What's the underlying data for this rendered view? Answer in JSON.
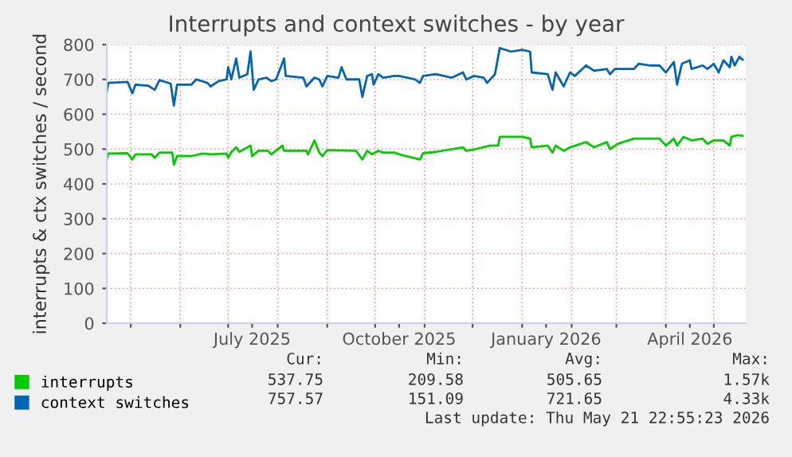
{
  "chart_data": {
    "type": "line",
    "title": "Interrupts and context switches - by year",
    "ylabel": "interrupts & ctx switches / second",
    "xlim": [
      "2025-04-16",
      "2026-05-21"
    ],
    "xticks": [
      {
        "value": "2025-05-01",
        "label": null
      },
      {
        "value": "2025-06-01",
        "label": null
      },
      {
        "value": "2025-07-01",
        "label": null
      },
      {
        "value": "2025-07-16",
        "label": "July 2025"
      },
      {
        "value": "2025-08-01",
        "label": null
      },
      {
        "value": "2025-09-01",
        "label": null
      },
      {
        "value": "2025-10-01",
        "label": null
      },
      {
        "value": "2025-10-16",
        "label": "October 2025"
      },
      {
        "value": "2025-11-01",
        "label": null
      },
      {
        "value": "2025-12-01",
        "label": null
      },
      {
        "value": "2026-01-01",
        "label": null
      },
      {
        "value": "2026-01-16",
        "label": "January 2026"
      },
      {
        "value": "2026-02-01",
        "label": null
      },
      {
        "value": "2026-03-01",
        "label": null
      },
      {
        "value": "2026-04-01",
        "label": null
      },
      {
        "value": "2026-04-16",
        "label": "April 2026"
      },
      {
        "value": "2026-05-01",
        "label": null
      }
    ],
    "ylim": [
      0,
      800
    ],
    "yticks": [
      0,
      100,
      200,
      300,
      400,
      500,
      600,
      700,
      800
    ],
    "grid": true,
    "legend": "bottom left",
    "marker": "none",
    "line_style": "solid",
    "annotations": [
      "Cur:",
      "Min:",
      "Avg:",
      "Max:",
      "537.75",
      "209.58",
      "505.65",
      "1.57k",
      "757.57",
      "151.09",
      "721.65",
      "4.33k",
      "Last update: Thu May 21 22:55:23 2026"
    ],
    "series": [
      {
        "name": "interrupts",
        "color": "#00cc00",
        "x": [
          "2025-04-16",
          "2025-04-17",
          "2025-04-29",
          "2025-05-02",
          "2025-05-04",
          "2025-05-14",
          "2025-05-16",
          "2025-05-19",
          "2025-05-27",
          "2025-05-28",
          "2025-05-30",
          "2025-06-08",
          "2025-06-15",
          "2025-06-21",
          "2025-06-30",
          "2025-07-01",
          "2025-07-03",
          "2025-07-06",
          "2025-07-08",
          "2025-07-15",
          "2025-07-16",
          "2025-07-20",
          "2025-07-26",
          "2025-07-28",
          "2025-08-04",
          "2025-08-05",
          "2025-08-19",
          "2025-08-20",
          "2025-08-24",
          "2025-08-27",
          "2025-08-29",
          "2025-09-01",
          "2025-09-19",
          "2025-09-23",
          "2025-09-26",
          "2025-09-29",
          "2025-10-03",
          "2025-10-06",
          "2025-10-13",
          "2025-10-16",
          "2025-10-29",
          "2025-10-31",
          "2025-11-08",
          "2025-11-25",
          "2025-11-27",
          "2025-12-03",
          "2025-12-12",
          "2025-12-17",
          "2025-12-18",
          "2026-01-01",
          "2026-01-06",
          "2026-01-07",
          "2026-01-17",
          "2026-01-20",
          "2026-01-22",
          "2026-01-27",
          "2026-01-31",
          "2026-02-10",
          "2026-02-15",
          "2026-02-23",
          "2026-02-25",
          "2026-03-02",
          "2026-03-12",
          "2026-03-15",
          "2026-03-28",
          "2026-04-01",
          "2026-04-06",
          "2026-04-08",
          "2026-04-12",
          "2026-04-17",
          "2026-04-24",
          "2026-04-27",
          "2026-05-01",
          "2026-05-07",
          "2026-05-11",
          "2026-05-12",
          "2026-05-16",
          "2026-05-19"
        ],
        "values": [
          470,
          487,
          488,
          470,
          485,
          485,
          475,
          490,
          490,
          455,
          480,
          480,
          487,
          485,
          487,
          475,
          492,
          505,
          492,
          510,
          480,
          495,
          495,
          485,
          510,
          495,
          495,
          485,
          525,
          490,
          480,
          497,
          495,
          470,
          495,
          485,
          495,
          490,
          490,
          485,
          470,
          488,
          492,
          505,
          495,
          500,
          510,
          510,
          535,
          535,
          530,
          505,
          510,
          490,
          510,
          495,
          505,
          520,
          505,
          520,
          500,
          515,
          530,
          530,
          530,
          510,
          530,
          510,
          535,
          525,
          530,
          515,
          525,
          525,
          510,
          535,
          540,
          538
        ]
      },
      {
        "name": "context switches",
        "color": "#0066b3",
        "x": [
          "2025-04-16",
          "2025-04-17",
          "2025-04-29",
          "2025-05-02",
          "2025-05-04",
          "2025-05-12",
          "2025-05-16",
          "2025-05-19",
          "2025-05-26",
          "2025-05-28",
          "2025-05-30",
          "2025-06-08",
          "2025-06-11",
          "2025-06-18",
          "2025-06-20",
          "2025-06-25",
          "2025-06-30",
          "2025-07-01",
          "2025-07-03",
          "2025-07-06",
          "2025-07-08",
          "2025-07-13",
          "2025-07-15",
          "2025-07-17",
          "2025-07-20",
          "2025-07-25",
          "2025-07-28",
          "2025-07-31",
          "2025-08-05",
          "2025-08-06",
          "2025-08-17",
          "2025-08-19",
          "2025-08-24",
          "2025-08-27",
          "2025-08-29",
          "2025-09-01",
          "2025-09-08",
          "2025-09-10",
          "2025-09-13",
          "2025-09-21",
          "2025-09-23",
          "2025-09-26",
          "2025-09-29",
          "2025-09-30",
          "2025-10-03",
          "2025-10-06",
          "2025-10-13",
          "2025-10-16",
          "2025-10-26",
          "2025-10-29",
          "2025-10-31",
          "2025-11-08",
          "2025-11-18",
          "2025-11-25",
          "2025-11-27",
          "2025-12-02",
          "2025-12-08",
          "2025-12-10",
          "2025-12-15",
          "2025-12-18",
          "2025-12-25",
          "2026-01-01",
          "2026-01-06",
          "2026-01-07",
          "2026-01-17",
          "2026-01-20",
          "2026-01-22",
          "2026-01-27",
          "2026-01-31",
          "2026-02-03",
          "2026-02-10",
          "2026-02-15",
          "2026-02-23",
          "2026-02-25",
          "2026-02-28",
          "2026-03-12",
          "2026-03-15",
          "2026-03-22",
          "2026-03-28",
          "2026-04-01",
          "2026-04-06",
          "2026-04-08",
          "2026-04-11",
          "2026-04-16",
          "2026-04-17",
          "2026-04-24",
          "2026-04-27",
          "2026-05-01",
          "2026-05-04",
          "2026-05-07",
          "2026-05-11",
          "2026-05-12",
          "2026-05-14",
          "2026-05-17",
          "2026-05-18",
          "2026-05-19"
        ],
        "values": [
          665,
          690,
          693,
          660,
          685,
          682,
          670,
          698,
          688,
          625,
          685,
          685,
          700,
          690,
          680,
          695,
          700,
          735,
          700,
          760,
          705,
          715,
          780,
          670,
          700,
          705,
          695,
          700,
          760,
          710,
          705,
          680,
          705,
          700,
          680,
          710,
          705,
          735,
          700,
          700,
          650,
          710,
          715,
          685,
          715,
          705,
          710,
          710,
          700,
          690,
          710,
          715,
          705,
          720,
          700,
          710,
          705,
          690,
          715,
          790,
          780,
          785,
          780,
          720,
          715,
          670,
          720,
          680,
          720,
          710,
          740,
          725,
          730,
          715,
          730,
          730,
          745,
          740,
          740,
          720,
          750,
          685,
          745,
          755,
          730,
          740,
          730,
          745,
          720,
          755,
          735,
          765,
          740,
          765,
          760,
          757
        ]
      }
    ]
  }
}
